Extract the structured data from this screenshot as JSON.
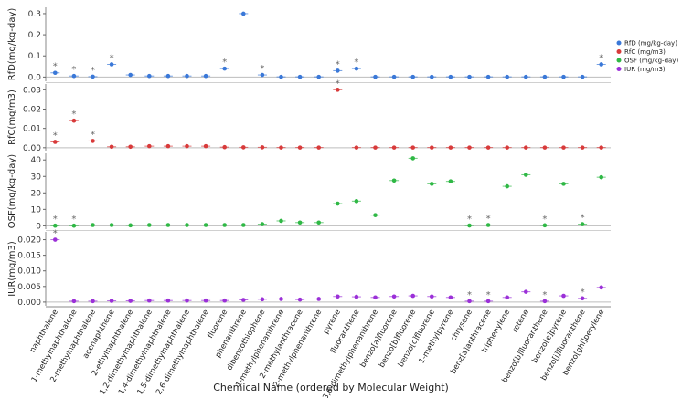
{
  "chart_data": {
    "type": "scatter",
    "xlabel": "Chemical Name (ordered by Molecular Weight)",
    "categories": [
      "naphthalene",
      "1-methylnaphthalene",
      "2-methylnaphthalene",
      "acenaphthene",
      "2-ethylnaphthalene",
      "1,2-dimethylnaphthalene",
      "1,4-dimethylnaphthalene",
      "1,5-dimethylnaphthalene",
      "2,6-dimethylnaphthalene",
      "fluorene",
      "phenanthrene",
      "dibenzothiophene",
      "1-methylphenanthrene",
      "2-methylanthracene",
      "2-methylphenanthrene",
      "pyrene",
      "fluoranthene",
      "3,6-dimethylphenanthrene",
      "benzo[a]fluorene",
      "benzo[b]fluorene",
      "benzo[c]fluorene",
      "1-methylpyrene",
      "chrysene",
      "benz[a]anthracene",
      "triphenylene",
      "retene",
      "benzo[b]fluoranthene",
      "benzo[e]pyrene",
      "benzo[j]fluoranthene",
      "benzo[ghi]perylene"
    ],
    "legend": {
      "position": "top-right",
      "entries": [
        {
          "label": "RfD (mg/kg-day)",
          "color": "#3a78d8"
        },
        {
          "label": "RfC (mg/m3)",
          "color": "#d83a3a"
        },
        {
          "label": "OSF (mg/kg-day)",
          "color": "#2fb845"
        },
        {
          "label": "IUR (mg/m3)",
          "color": "#9b30d8"
        }
      ]
    },
    "panels": [
      {
        "name": "RfD",
        "ylabel": "RfD(mg/kg-day)",
        "color": "#3a78d8",
        "ylim": [
          -0.02,
          0.33
        ],
        "yticks": [
          0.0,
          0.1,
          0.2,
          0.3
        ],
        "ytick_labels": [
          "0.0",
          "0.1",
          "0.2",
          "0.3"
        ],
        "values": [
          0.02,
          0.005,
          0.002,
          0.06,
          0.01,
          0.005,
          0.005,
          0.005,
          0.005,
          0.04,
          0.3,
          0.01,
          0.001,
          0.001,
          0.001,
          0.03,
          0.04,
          0.001,
          0.001,
          0.001,
          0.001,
          0.001,
          0.001,
          0.001,
          0.001,
          0.001,
          0.001,
          0.001,
          0.001,
          0.06
        ],
        "starred": [
          "naphthalene",
          "1-methylnaphthalene",
          "2-methylnaphthalene",
          "acenaphthene",
          "fluorene",
          "dibenzothiophene",
          "pyrene",
          "fluoranthene",
          "benzo[ghi]perylene"
        ]
      },
      {
        "name": "RfC",
        "ylabel": "RfC(mg/m3)",
        "color": "#d83a3a",
        "ylim": [
          -0.0015,
          0.033
        ],
        "yticks": [
          0.0,
          0.01,
          0.02,
          0.03
        ],
        "ytick_labels": [
          "0.00",
          "0.01",
          "0.02",
          "0.03"
        ],
        "values": [
          0.003,
          0.014,
          0.0035,
          0.0005,
          0.0005,
          0.0008,
          0.0008,
          0.0008,
          0.0008,
          0.0003,
          0.0002,
          0.0002,
          0.0001,
          0.0001,
          0.0001,
          0.03,
          0.0001,
          0.0001,
          0.0001,
          0.0001,
          0.0001,
          0.0001,
          0.0001,
          0.0001,
          0.0001,
          0.0001,
          0.0001,
          0.0001,
          0.0001,
          0.0001
        ],
        "starred": [
          "naphthalene",
          "1-methylnaphthalene",
          "2-methylnaphthalene",
          "pyrene"
        ]
      },
      {
        "name": "OSF",
        "ylabel": "OSF(mg/kg-day)",
        "color": "#2fb845",
        "ylim": [
          -2,
          44
        ],
        "yticks": [
          0,
          10,
          20,
          30,
          40
        ],
        "ytick_labels": [
          "0",
          "10",
          "20",
          "30",
          "40"
        ],
        "values": [
          0.1,
          0.1,
          0.5,
          0.5,
          0.3,
          0.5,
          0.5,
          0.5,
          0.5,
          0.5,
          0.5,
          1,
          3,
          2,
          2,
          13.5,
          15,
          6.5,
          27.5,
          41,
          25.5,
          27,
          0.2,
          0.5,
          24,
          31,
          0.3,
          25.5,
          1,
          29.5
        ],
        "starred": [
          "naphthalene",
          "1-methylnaphthalene",
          "chrysene",
          "benz[a]anthracene",
          "benzo[b]fluoranthene",
          "benzo[j]fluoranthene"
        ]
      },
      {
        "name": "IUR",
        "ylabel": "IUR(mg/m3)",
        "color": "#9b30d8",
        "ylim": [
          -0.0012,
          0.0225
        ],
        "yticks": [
          0.0,
          0.005,
          0.01,
          0.015,
          0.02
        ],
        "ytick_labels": [
          "0.000",
          "0.005",
          "0.010",
          "0.015",
          "0.020"
        ],
        "values": [
          0.02,
          0.0003,
          0.0003,
          0.0004,
          0.0004,
          0.0005,
          0.0005,
          0.0005,
          0.0005,
          0.0005,
          0.0007,
          0.0009,
          0.001,
          0.0008,
          0.001,
          0.0018,
          0.0017,
          0.0015,
          0.0018,
          0.002,
          0.0018,
          0.0015,
          0.0003,
          0.0003,
          0.0015,
          0.0033,
          0.0003,
          0.002,
          0.0012,
          0.0047
        ],
        "starred": [
          "naphthalene",
          "chrysene",
          "benz[a]anthracene",
          "benzo[b]fluoranthene",
          "benzo[j]fluoranthene"
        ]
      }
    ]
  }
}
